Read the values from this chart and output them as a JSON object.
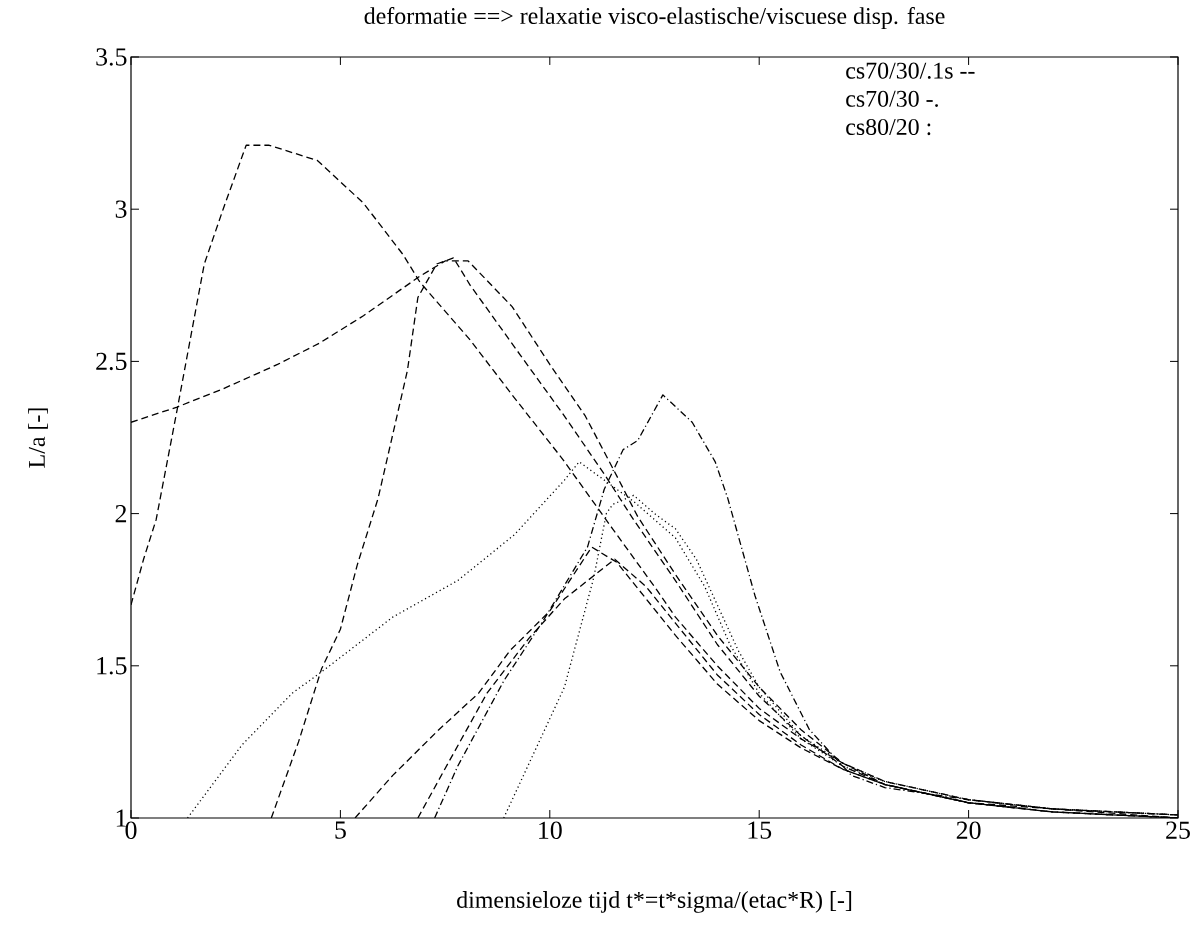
{
  "chart_data": {
    "type": "line",
    "title": "deformatie ==> relaxatie visco-elastische/viscuese disp. fase",
    "xlabel": "dimensieloze tijd t*=t*sigma/(etac*R) [-]",
    "ylabel": "L/a [-]",
    "xlim": [
      0,
      25
    ],
    "ylim": [
      1,
      3.5
    ],
    "xticks": [
      0,
      5,
      10,
      15,
      20,
      25
    ],
    "yticks": [
      1,
      1.5,
      2,
      2.5,
      3,
      3.5
    ],
    "annotations": [
      "cs70/30/.1s --",
      "cs70/30 -.",
      "cs80/20 :"
    ],
    "series": [
      {
        "color": "#000000",
        "line_style": "dashed",
        "x": [
          0,
          0.3,
          0.6,
          1.1,
          1.75,
          2.2,
          2.75,
          3.3,
          4.45,
          5.55,
          6.5,
          6.9,
          8.1,
          9.1,
          10.3,
          11.5,
          12.5,
          13,
          14,
          15,
          16,
          17,
          18,
          20,
          22,
          25
        ],
        "values": [
          1.7,
          1.85,
          1.98,
          2.34,
          2.82,
          3.0,
          3.21,
          3.21,
          3.16,
          3.02,
          2.85,
          2.76,
          2.57,
          2.39,
          2.18,
          1.95,
          1.76,
          1.66,
          1.5,
          1.36,
          1.26,
          1.18,
          1.12,
          1.06,
          1.03,
          1.01
        ]
      },
      {
        "color": "#000000",
        "line_style": "dashed",
        "x": [
          0,
          1.1,
          2.2,
          3.5,
          4.5,
          5.55,
          6.9,
          7.5,
          8.05,
          9.1,
          10,
          10.85,
          11.5,
          12.1,
          13,
          14,
          15,
          16,
          17,
          18,
          20,
          22,
          25
        ],
        "values": [
          2.3,
          2.35,
          2.41,
          2.49,
          2.56,
          2.65,
          2.78,
          2.83,
          2.83,
          2.68,
          2.49,
          2.32,
          2.15,
          1.99,
          1.8,
          1.6,
          1.43,
          1.29,
          1.18,
          1.11,
          1.05,
          1.03,
          1.0
        ]
      },
      {
        "color": "#000000",
        "line_style": "dashed",
        "x": [
          3.35,
          4,
          4.55,
          5,
          5.4,
          5.9,
          6.6,
          6.85,
          7.3,
          7.7,
          8.1,
          9.3,
          10.3,
          11.3,
          12,
          13,
          14,
          15,
          16,
          17,
          18,
          20,
          22,
          25
        ],
        "values": [
          1.0,
          1.25,
          1.49,
          1.62,
          1.83,
          2.05,
          2.47,
          2.71,
          2.82,
          2.84,
          2.75,
          2.52,
          2.33,
          2.13,
          1.98,
          1.78,
          1.57,
          1.4,
          1.27,
          1.17,
          1.11,
          1.05,
          1.02,
          1.0
        ]
      },
      {
        "color": "#000000",
        "line_style": "dashed",
        "x": [
          5.35,
          6.25,
          7.35,
          8.3,
          9.05,
          10,
          11,
          11.6,
          12.3,
          13,
          14,
          15,
          16,
          17,
          18,
          20,
          22,
          25
        ],
        "values": [
          1.0,
          1.14,
          1.29,
          1.41,
          1.55,
          1.68,
          1.89,
          1.84,
          1.72,
          1.6,
          1.44,
          1.32,
          1.23,
          1.16,
          1.11,
          1.05,
          1.02,
          1.0
        ]
      },
      {
        "color": "#000000",
        "line_style": "dashed",
        "x": [
          6.85,
          7.45,
          8.5,
          9.5,
          10.35,
          11.55,
          12.3,
          13,
          14,
          15,
          16,
          17,
          18,
          20,
          22,
          25
        ],
        "values": [
          1.0,
          1.15,
          1.41,
          1.59,
          1.72,
          1.85,
          1.76,
          1.64,
          1.47,
          1.34,
          1.24,
          1.16,
          1.11,
          1.05,
          1.02,
          1.0
        ]
      },
      {
        "color": "#000000",
        "line_style": "dashdot",
        "x": [
          7.25,
          7.8,
          8.9,
          9.85,
          10.9,
          11.3,
          11.75,
          12.1,
          12.7,
          13.4,
          13.95,
          14.25,
          14.9,
          15.5,
          16.2,
          17.2,
          18,
          20,
          22,
          25
        ],
        "values": [
          1.0,
          1.17,
          1.45,
          1.65,
          1.89,
          2.08,
          2.21,
          2.24,
          2.39,
          2.3,
          2.17,
          2.05,
          1.73,
          1.48,
          1.29,
          1.14,
          1.1,
          1.06,
          1.03,
          1.01
        ]
      },
      {
        "color": "#000000",
        "line_style": "dotted",
        "x": [
          1.35,
          2.65,
          3.85,
          4.55,
          6.25,
          7.8,
          9.15,
          10.35,
          10.7,
          11.5,
          12,
          13,
          13.7,
          14.3,
          15,
          16,
          17,
          18,
          20,
          22,
          25
        ],
        "values": [
          1.0,
          1.24,
          1.41,
          1.48,
          1.66,
          1.78,
          1.93,
          2.11,
          2.17,
          2.09,
          2.04,
          1.92,
          1.76,
          1.57,
          1.41,
          1.26,
          1.17,
          1.12,
          1.06,
          1.03,
          1.01
        ]
      },
      {
        "color": "#000000",
        "line_style": "dotted",
        "x": [
          8.9,
          10.35,
          11.05,
          11.35,
          11.5,
          12,
          12.5,
          13,
          13.5,
          14,
          14.5,
          15,
          16,
          17,
          18,
          20,
          22,
          25
        ],
        "values": [
          1.0,
          1.43,
          1.79,
          2.0,
          2.03,
          2.06,
          2.0,
          1.95,
          1.85,
          1.7,
          1.55,
          1.43,
          1.27,
          1.18,
          1.12,
          1.06,
          1.03,
          1.01
        ]
      }
    ]
  }
}
